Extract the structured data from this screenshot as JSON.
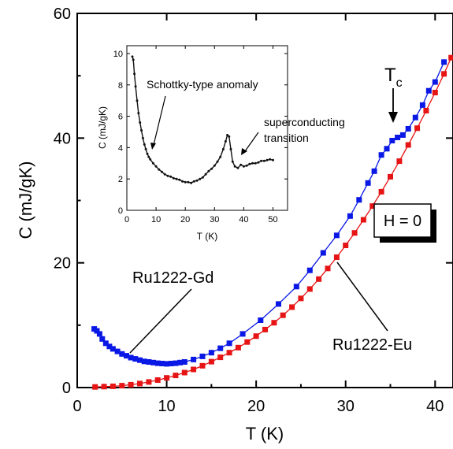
{
  "chart_data": [
    {
      "type": "scatter",
      "xlabel": "T (K)",
      "ylabel": "C (mJ/gK)",
      "xlim": [
        0,
        42
      ],
      "ylim": [
        0,
        60
      ],
      "xticks": [
        0,
        10,
        20,
        30,
        40
      ],
      "yticks": [
        0,
        20,
        40,
        60
      ],
      "grid": false,
      "series": [
        {
          "name": "Ru1222-Gd",
          "color": "#0a18e6",
          "x": [
            1.9,
            2.2,
            2.5,
            2.8,
            3.2,
            3.6,
            4.0,
            4.5,
            5.0,
            5.5,
            6.0,
            6.5,
            7.0,
            7.5,
            8.0,
            8.5,
            9.0,
            9.5,
            10.0,
            10.5,
            11.0,
            11.5,
            12.0,
            13.0,
            14.0,
            15.0,
            16.0,
            17.0,
            18.5,
            20.5,
            22.5,
            24.5,
            26.0,
            27.5,
            29.0,
            30.5,
            31.5,
            32.5,
            33.2,
            34.0,
            34.6,
            35.2,
            35.8,
            36.4,
            37.0,
            37.8,
            38.6,
            39.3,
            40.0,
            41.0
          ],
          "y": [
            9.4,
            9.1,
            8.6,
            7.8,
            7.1,
            6.6,
            6.2,
            5.8,
            5.4,
            5.1,
            4.8,
            4.6,
            4.4,
            4.2,
            4.1,
            4.0,
            3.9,
            3.85,
            3.8,
            3.85,
            3.9,
            4.0,
            4.1,
            4.5,
            5.0,
            5.6,
            6.3,
            7.1,
            8.6,
            10.8,
            13.4,
            16.2,
            18.8,
            21.6,
            24.4,
            27.5,
            30.1,
            32.8,
            34.7,
            37.3,
            38.3,
            39.6,
            40.1,
            40.5,
            41.5,
            43.3,
            45.3,
            47.6,
            49.0,
            52.2
          ]
        },
        {
          "name": "Ru1222-Eu",
          "color": "#e61414",
          "x": [
            2.0,
            3.0,
            4.0,
            5.0,
            6.0,
            7.0,
            8.0,
            9.0,
            10.0,
            11.0,
            12.0,
            13.0,
            14.0,
            15.0,
            16.0,
            17.0,
            18.0,
            19.0,
            20.0,
            21.0,
            22.0,
            23.0,
            24.0,
            25.0,
            26.0,
            27.0,
            28.0,
            29.0,
            30.0,
            31.0,
            32.0,
            33.0,
            34.0,
            35.0,
            36.0,
            37.0,
            38.0,
            39.0,
            40.0,
            41.0,
            41.8
          ],
          "y": [
            0.1,
            0.15,
            0.2,
            0.3,
            0.45,
            0.65,
            0.9,
            1.2,
            1.55,
            1.95,
            2.4,
            2.9,
            3.5,
            4.15,
            4.85,
            5.6,
            6.4,
            7.3,
            8.25,
            9.3,
            10.4,
            11.6,
            12.9,
            14.3,
            15.8,
            17.4,
            19.1,
            20.9,
            22.8,
            24.8,
            26.9,
            29.1,
            31.4,
            33.8,
            36.3,
            38.9,
            41.6,
            44.4,
            47.3,
            50.3,
            52.9
          ]
        }
      ],
      "annotations": {
        "tc_label_main": "T",
        "tc_label_sub": "c",
        "tc_temperature": 35.3,
        "field_label": "H = 0",
        "gd_label": "Ru1222-Gd",
        "eu_label": "Ru1222-Eu"
      }
    },
    {
      "type": "line",
      "inset": true,
      "xlabel": "T (K)",
      "ylabel": "C (mJ/gK)",
      "xlim": [
        0,
        55
      ],
      "ylim": [
        0,
        10.5
      ],
      "xticks": [
        0,
        10,
        20,
        30,
        40,
        50
      ],
      "yticks": [
        0,
        2,
        4,
        6,
        8,
        10
      ],
      "series": [
        {
          "color": "#111111",
          "x": [
            1.9,
            2.2,
            2.6,
            3.0,
            3.5,
            4.0,
            4.5,
            5.0,
            5.5,
            6.0,
            6.5,
            7.0,
            7.5,
            8.0,
            9.0,
            10.0,
            11.0,
            12.0,
            13.0,
            14.0,
            15.0,
            16.0,
            17.0,
            18.0,
            19.0,
            20.0,
            21.0,
            22.0,
            23.0,
            24.0,
            25.0,
            26.0,
            27.0,
            28.0,
            29.0,
            30.0,
            31.0,
            32.0,
            33.0,
            33.8,
            34.4,
            35.0,
            35.6,
            36.2,
            37.0,
            38.0,
            39.0,
            40.0,
            41.0,
            42.0,
            43.0,
            44.0,
            45.0,
            46.0,
            47.0,
            48.0,
            49.0,
            50.0
          ],
          "y": [
            9.8,
            9.6,
            8.7,
            7.9,
            7.0,
            6.2,
            5.6,
            5.1,
            4.6,
            4.2,
            3.9,
            3.6,
            3.4,
            3.25,
            3.0,
            2.8,
            2.6,
            2.45,
            2.3,
            2.2,
            2.15,
            2.05,
            2.0,
            1.95,
            1.85,
            1.8,
            1.8,
            1.75,
            1.85,
            1.9,
            2.0,
            2.1,
            2.3,
            2.5,
            2.65,
            2.85,
            3.1,
            3.4,
            3.9,
            4.4,
            4.8,
            4.7,
            3.9,
            3.1,
            2.8,
            2.7,
            2.9,
            2.8,
            2.85,
            2.95,
            3.0,
            3.0,
            3.05,
            3.15,
            3.15,
            3.2,
            3.25,
            3.2
          ]
        }
      ],
      "annotations": {
        "schottky_label": "Schottky-type anomaly",
        "sc_label_line1": "superconducting",
        "sc_label_line2": "transition"
      }
    }
  ]
}
